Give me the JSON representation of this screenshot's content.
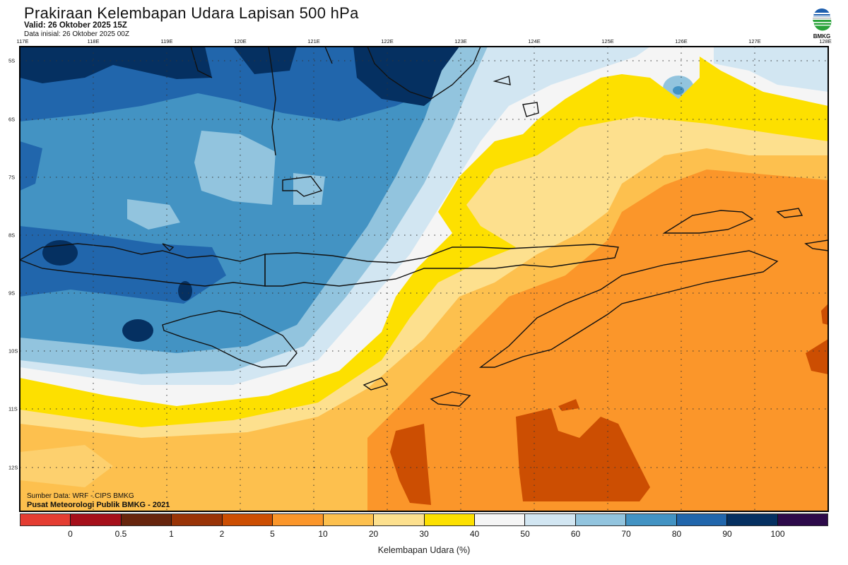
{
  "header": {
    "title": "Prakiraan Kelembapan Udara Lapisan 500 hPa",
    "valid": "Valid: 26 Oktober 2025 15Z",
    "initial": "Data inisial: 26 Oktober 2025 00Z"
  },
  "logo": {
    "text": "BMKG"
  },
  "map": {
    "lon_labels": [
      "117E",
      "118E",
      "119E",
      "120E",
      "121E",
      "122E",
      "123E",
      "124E",
      "125E",
      "126E",
      "127E",
      "128E"
    ],
    "lat_labels": [
      "5S",
      "6S",
      "7S",
      "8S",
      "9S",
      "10S",
      "11S",
      "12S"
    ],
    "source": "Sumber Data: WRF - CIPS BMKG",
    "credit": "Pusat Meteorologi Publik BMKG - 2021"
  },
  "colorbar": {
    "title": "Kelembapan Udara (%)",
    "labels": [
      "0",
      "0.5",
      "1",
      "2",
      "5",
      "10",
      "20",
      "30",
      "40",
      "50",
      "60",
      "70",
      "80",
      "90",
      "100"
    ],
    "colors": [
      "#e43d32",
      "#a50f1a",
      "#67250d",
      "#993407",
      "#cc4e02",
      "#fb962a",
      "#fdc04e",
      "#fde08e",
      "#fde000",
      "#f5f5f5",
      "#d2e6f2",
      "#92c4de",
      "#4393c3",
      "#2166ac",
      "#053061",
      "#2d0a4a"
    ]
  }
}
